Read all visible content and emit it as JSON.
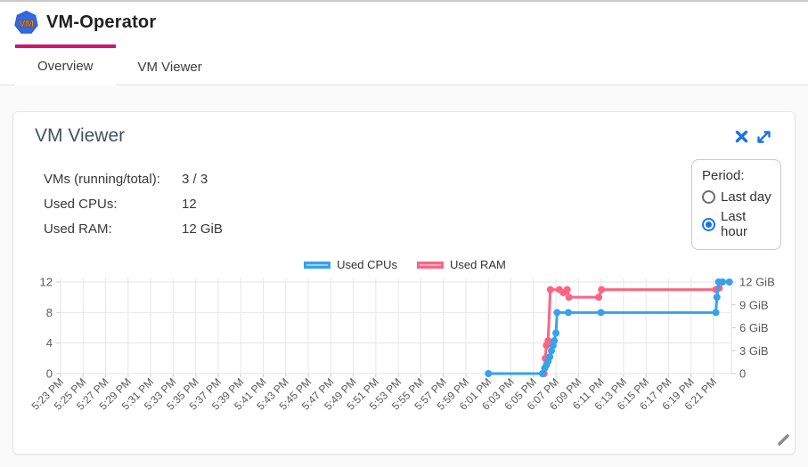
{
  "header": {
    "title": "VM-Operator",
    "logo_text": "VM"
  },
  "tabs": [
    {
      "label": "Overview",
      "active": true
    },
    {
      "label": "VM Viewer",
      "active": false
    }
  ],
  "card": {
    "title": "VM Viewer",
    "stats": [
      {
        "label": "VMs (running/total):",
        "value": "3 / 3"
      },
      {
        "label": "Used CPUs:",
        "value": "12"
      },
      {
        "label": "Used RAM:",
        "value": "12 GiB"
      }
    ],
    "period": {
      "label": "Period:",
      "options": [
        {
          "label": "Last day",
          "selected": false
        },
        {
          "label": "Last hour",
          "selected": true
        }
      ]
    }
  },
  "colors": {
    "accent_magenta": "#d01570",
    "icon_blue": "#1a73e8",
    "cpu_blue": "#36A2EB",
    "cpu_blue_light": "#9AD0F5",
    "ram_pink": "#FF6384",
    "ram_pink_light": "#FFB1C1",
    "grid": "#e6e6e6",
    "axis_text": "#595959"
  },
  "chart_data": {
    "type": "line",
    "title": "",
    "legend_position": "top-center",
    "grid": true,
    "legend": [
      {
        "name": "Used CPUs",
        "color": "#36A2EB",
        "fill": "#9AD0F5"
      },
      {
        "name": "Used RAM",
        "color": "#FF6384",
        "fill": "#FFB1C1"
      }
    ],
    "x_axis_note": "time, one tick per 2 minutes; series x values are minutes after 5:23 PM",
    "x_tick_labels": [
      "5:23 PM",
      "5:25 PM",
      "5:27 PM",
      "5:29 PM",
      "5:31 PM",
      "5:33 PM",
      "5:35 PM",
      "5:37 PM",
      "5:39 PM",
      "5:41 PM",
      "5:43 PM",
      "5:45 PM",
      "5:47 PM",
      "5:49 PM",
      "5:51 PM",
      "5:53 PM",
      "5:55 PM",
      "5:57 PM",
      "5:59 PM",
      "6:01 PM",
      "6:03 PM",
      "6:05 PM",
      "6:07 PM",
      "6:09 PM",
      "6:11 PM",
      "6:13 PM",
      "6:15 PM",
      "6:17 PM",
      "6:19 PM",
      "6:21 PM"
    ],
    "left_axis": {
      "label": "Used CPUs",
      "values": [
        0,
        4,
        8,
        12
      ],
      "labels": [
        "0",
        "4",
        "8",
        "12"
      ],
      "range": [
        0,
        12
      ]
    },
    "right_axis": {
      "label": "Used RAM",
      "values": [
        0,
        3,
        6,
        9,
        12
      ],
      "labels": [
        "0",
        "3 GiB",
        "6 GiB",
        "9 GiB",
        "12 GiB"
      ],
      "range": [
        0,
        12
      ]
    },
    "series": [
      {
        "name": "Used RAM",
        "axis": "right",
        "color": "#FF6384",
        "points": [
          [
            42.95,
            0
          ],
          [
            43.05,
            2
          ],
          [
            43.15,
            3.7
          ],
          [
            43.3,
            4.3
          ],
          [
            43.5,
            11
          ],
          [
            44.3,
            11
          ],
          [
            44.65,
            10.6
          ],
          [
            45.0,
            11
          ],
          [
            45.15,
            10
          ],
          [
            47.8,
            10
          ],
          [
            48.05,
            11
          ],
          [
            58.2,
            11
          ],
          [
            58.5,
            11.2
          ]
        ]
      },
      {
        "name": "Used CPUs",
        "axis": "left",
        "color": "#36A2EB",
        "points": [
          [
            38,
            0
          ],
          [
            42.8,
            0
          ],
          [
            43.0,
            0.7
          ],
          [
            43.15,
            1.1
          ],
          [
            43.3,
            1.6
          ],
          [
            43.45,
            2.2
          ],
          [
            43.6,
            3
          ],
          [
            43.75,
            3.7
          ],
          [
            43.85,
            4.3
          ],
          [
            44.0,
            5.3
          ],
          [
            44.1,
            8
          ],
          [
            45.1,
            8
          ],
          [
            48.0,
            8
          ],
          [
            58.2,
            8
          ],
          [
            58.3,
            10
          ],
          [
            58.45,
            12
          ],
          [
            58.8,
            12
          ],
          [
            59.4,
            12
          ]
        ]
      }
    ]
  }
}
